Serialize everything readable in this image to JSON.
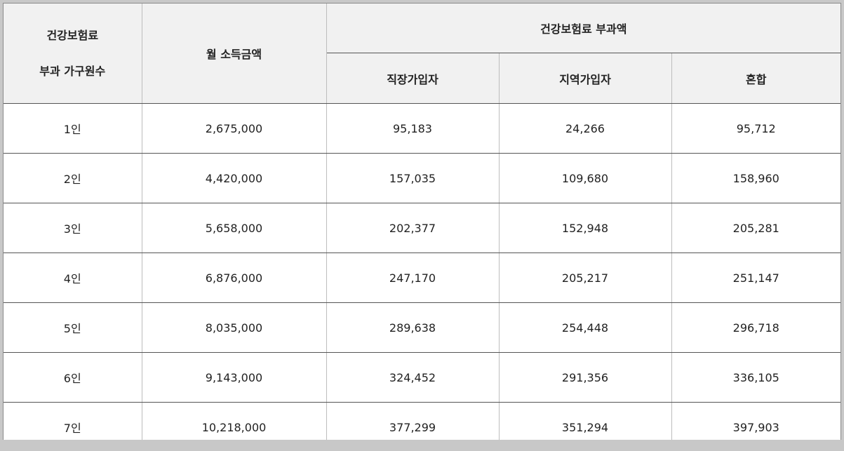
{
  "table": {
    "header": {
      "household_line1": "건강보험료",
      "household_line2": "부과 가구원수",
      "income": "월 소득금액",
      "premium_group": "건강보험료 부과액",
      "employee": "직장가입자",
      "regional": "지역가입자",
      "mixed": "혼합"
    },
    "rows": [
      {
        "household": "1인",
        "income": "2,675,000",
        "employee": "95,183",
        "regional": "24,266",
        "mixed": "95,712"
      },
      {
        "household": "2인",
        "income": "4,420,000",
        "employee": "157,035",
        "regional": "109,680",
        "mixed": "158,960"
      },
      {
        "household": "3인",
        "income": "5,658,000",
        "employee": "202,377",
        "regional": "152,948",
        "mixed": "205,281"
      },
      {
        "household": "4인",
        "income": "6,876,000",
        "employee": "247,170",
        "regional": "205,217",
        "mixed": "251,147"
      },
      {
        "household": "5인",
        "income": "8,035,000",
        "employee": "289,638",
        "regional": "254,448",
        "mixed": "296,718"
      },
      {
        "household": "6인",
        "income": "9,143,000",
        "employee": "324,452",
        "regional": "291,356",
        "mixed": "336,105"
      },
      {
        "household": "7인",
        "income": "10,218,000",
        "employee": "377,299",
        "regional": "351,294",
        "mixed": "397,903"
      }
    ]
  }
}
